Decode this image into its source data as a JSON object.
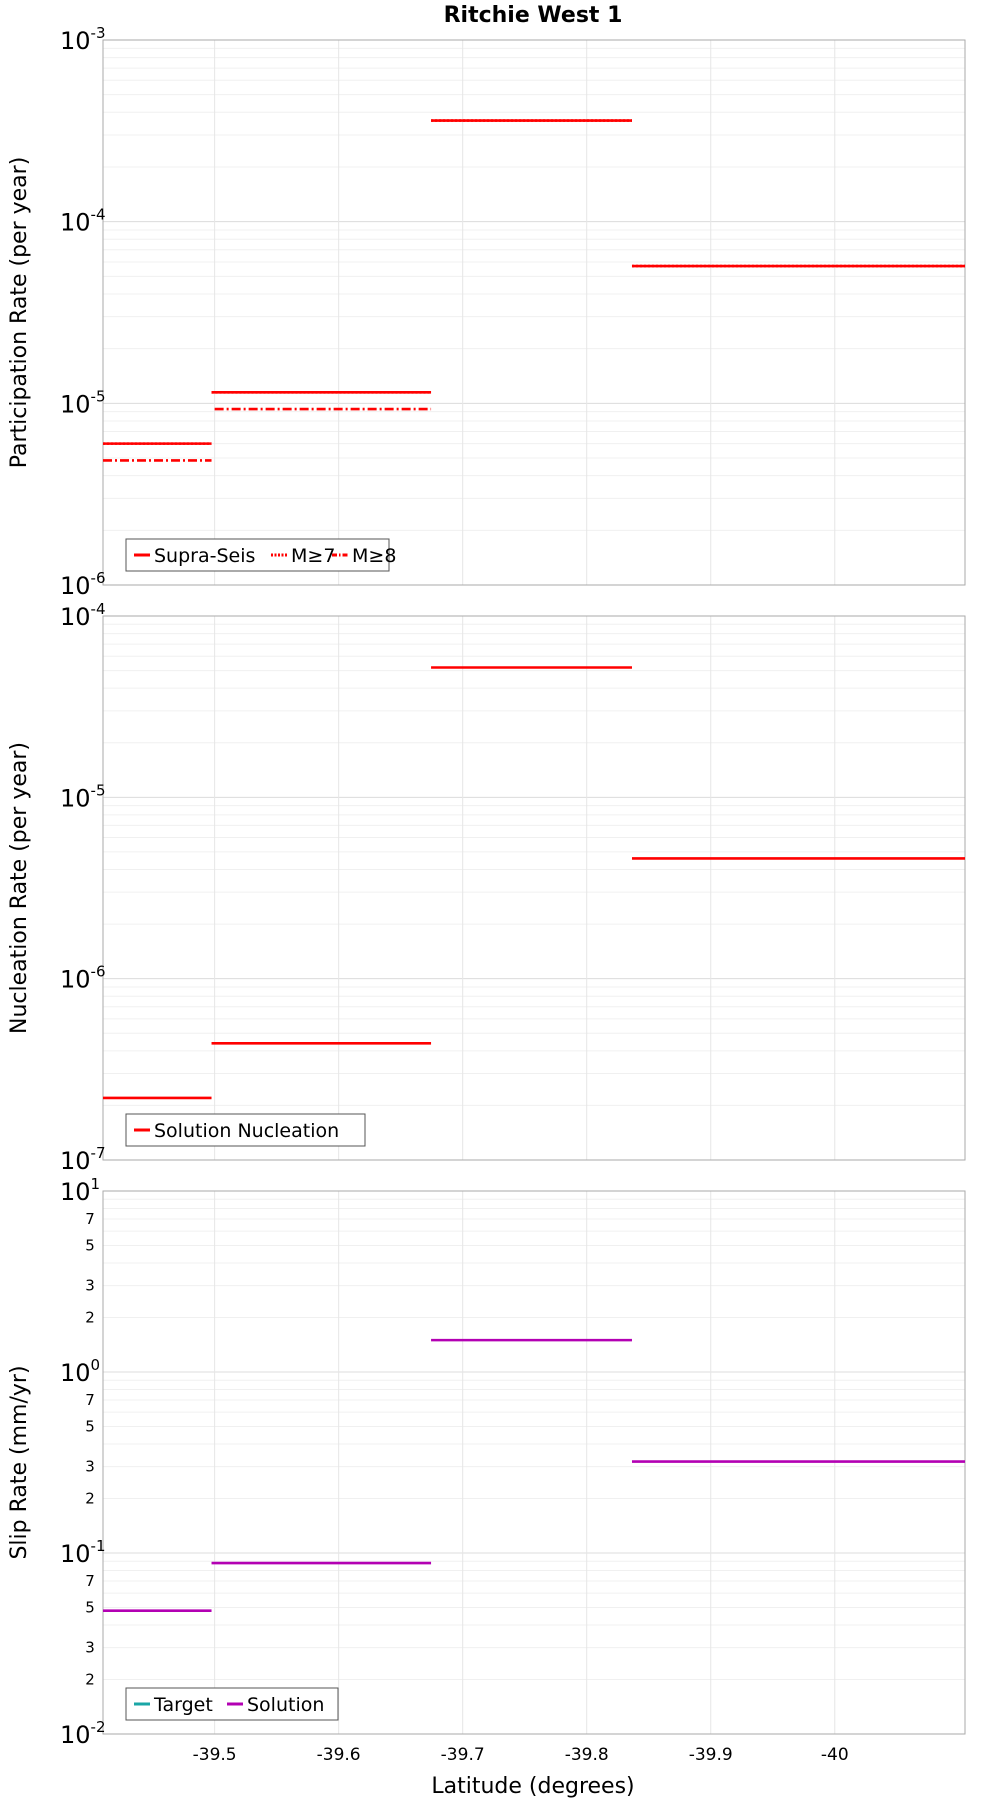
{
  "chart_data": {
    "title": "Ritchie West 1",
    "type": "line",
    "xlabel": "Latitude (degrees)",
    "xlim": [
      -39.41,
      -40.105
    ],
    "x_ticks": [
      {
        "value": -39.5,
        "label": "-39.5"
      },
      {
        "value": -39.6,
        "label": "-39.6"
      },
      {
        "value": -39.7,
        "label": "-39.7"
      },
      {
        "value": -39.8,
        "label": "-39.8"
      },
      {
        "value": -39.9,
        "label": "-39.9"
      },
      {
        "value": -40.0,
        "label": "-40"
      }
    ],
    "panels": [
      {
        "id": "participation",
        "ylabel": "Participation Rate (per year)",
        "yscale": "log",
        "ylim_exp": [
          -6,
          -3
        ],
        "decade_labels": [
          {
            "exp": -6,
            "base": "10",
            "sup": "-6"
          },
          {
            "exp": -5,
            "base": "10",
            "sup": "-5"
          },
          {
            "exp": -4,
            "base": "10",
            "sup": "-4"
          },
          {
            "exp": -3,
            "base": "10",
            "sup": "-3"
          }
        ],
        "minor_labels": [],
        "legend": [
          {
            "label": "Supra-Seis",
            "style": "solid",
            "color": "#ff0000"
          },
          {
            "label": "M≥7",
            "style": "dotted",
            "color": "#ff0000"
          },
          {
            "label": "M≥8",
            "style": "dashdot",
            "color": "#ff0000"
          }
        ],
        "series": [
          {
            "name": "Supra-Seis",
            "color": "#ff0000",
            "style": "solid",
            "segments": [
              {
                "x0": -39.41,
                "x1": -39.4975,
                "value": 6e-06
              },
              {
                "x0": -39.4975,
                "x1": -39.6745,
                "value": 1.15e-05
              },
              {
                "x0": -39.6745,
                "x1": -39.8365,
                "value": 0.00036
              },
              {
                "x0": -39.8365,
                "x1": -40.105,
                "value": 5.7e-05
              }
            ]
          },
          {
            "name": "M≥7",
            "color": "#ff0000",
            "style": "dotted",
            "segments": [
              {
                "x0": -39.41,
                "x1": -39.4975,
                "value": 6e-06
              },
              {
                "x0": -39.4975,
                "x1": -39.6745,
                "value": 1.15e-05
              },
              {
                "x0": -39.6745,
                "x1": -39.8365,
                "value": 0.00036
              },
              {
                "x0": -39.8365,
                "x1": -40.105,
                "value": 5.7e-05
              }
            ]
          },
          {
            "name": "M≥8",
            "color": "#ff0000",
            "style": "dashdot",
            "segments": [
              {
                "x0": -39.41,
                "x1": -39.4975,
                "value": 4.85e-06
              },
              {
                "x0": -39.5,
                "x1": -39.6745,
                "value": 9.3e-06
              }
            ]
          }
        ]
      },
      {
        "id": "nucleation",
        "ylabel": "Nucleation Rate (per year)",
        "yscale": "log",
        "ylim_exp": [
          -7,
          -4
        ],
        "decade_labels": [
          {
            "exp": -7,
            "base": "10",
            "sup": "-7"
          },
          {
            "exp": -6,
            "base": "10",
            "sup": "-6"
          },
          {
            "exp": -5,
            "base": "10",
            "sup": "-5"
          },
          {
            "exp": -4,
            "base": "10",
            "sup": "-4"
          }
        ],
        "minor_labels": [],
        "legend": [
          {
            "label": "Solution Nucleation",
            "style": "solid",
            "color": "#ff0000"
          }
        ],
        "series": [
          {
            "name": "Solution Nucleation",
            "color": "#ff0000",
            "style": "solid",
            "segments": [
              {
                "x0": -39.41,
                "x1": -39.4975,
                "value": 2.2e-07
              },
              {
                "x0": -39.4975,
                "x1": -39.6745,
                "value": 4.4e-07
              },
              {
                "x0": -39.6745,
                "x1": -39.8365,
                "value": 5.2e-05
              },
              {
                "x0": -39.8365,
                "x1": -40.105,
                "value": 4.6e-06
              }
            ]
          }
        ]
      },
      {
        "id": "slip",
        "ylabel": "Slip Rate (mm/yr)",
        "yscale": "log",
        "ylim_exp": [
          -2,
          1
        ],
        "decade_labels": [
          {
            "exp": -2,
            "base": "10",
            "sup": "-2"
          },
          {
            "exp": -1,
            "base": "10",
            "sup": "-1"
          },
          {
            "exp": 0,
            "base": "10",
            "sup": "0"
          },
          {
            "exp": 1,
            "base": "10",
            "sup": "1"
          }
        ],
        "minor_labels": [
          {
            "value": 0.02,
            "label": "2"
          },
          {
            "value": 0.03,
            "label": "3"
          },
          {
            "value": 0.05,
            "label": "5"
          },
          {
            "value": 0.07,
            "label": "7"
          },
          {
            "value": 0.2,
            "label": "2"
          },
          {
            "value": 0.3,
            "label": "3"
          },
          {
            "value": 0.5,
            "label": "5"
          },
          {
            "value": 0.7,
            "label": "7"
          },
          {
            "value": 2,
            "label": "2"
          },
          {
            "value": 3,
            "label": "3"
          },
          {
            "value": 5,
            "label": "5"
          },
          {
            "value": 7,
            "label": "7"
          }
        ],
        "legend": [
          {
            "label": "Target",
            "style": "solid",
            "color": "#1aa6a6"
          },
          {
            "label": "Solution",
            "style": "solid",
            "color": "#b300b3"
          }
        ],
        "series": [
          {
            "name": "Solution",
            "color": "#b300b3",
            "style": "solid",
            "segments": [
              {
                "x0": -39.41,
                "x1": -39.4975,
                "value": 0.048
              },
              {
                "x0": -39.4975,
                "x1": -39.6745,
                "value": 0.088
              },
              {
                "x0": -39.6745,
                "x1": -39.8365,
                "value": 1.5
              },
              {
                "x0": -39.8365,
                "x1": -40.105,
                "value": 0.32
              }
            ]
          }
        ]
      }
    ]
  }
}
